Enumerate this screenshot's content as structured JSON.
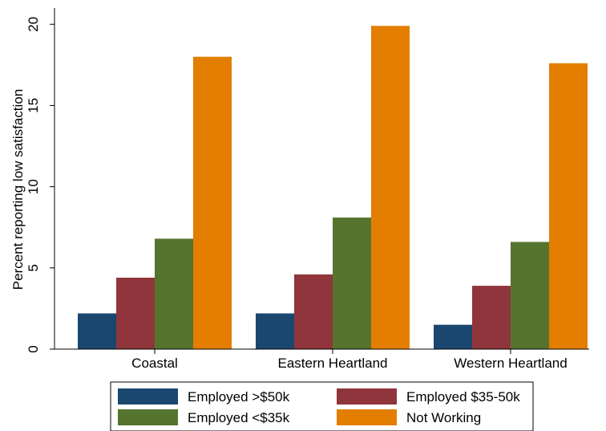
{
  "chart_data": {
    "type": "bar",
    "title": "",
    "xlabel": "",
    "ylabel": "Percent reporting low satisfaction",
    "ylim": [
      0,
      21
    ],
    "yticks": [
      0,
      5,
      10,
      15,
      20
    ],
    "categories": [
      "Coastal",
      "Eastern Heartland",
      "Western Heartland"
    ],
    "series": [
      {
        "name": "Employed >$50k",
        "color": "#1a476f",
        "values": [
          2.2,
          2.2,
          1.5
        ]
      },
      {
        "name": "Employed $35-50k",
        "color": "#90353b",
        "values": [
          4.4,
          4.6,
          3.9
        ]
      },
      {
        "name": "Employed <$35k",
        "color": "#55752f",
        "values": [
          6.8,
          8.1,
          6.6
        ]
      },
      {
        "name": "Not Working",
        "color": "#e37e00",
        "values": [
          18.0,
          19.9,
          17.6
        ]
      }
    ],
    "grid": false,
    "legend_position": "bottom"
  }
}
